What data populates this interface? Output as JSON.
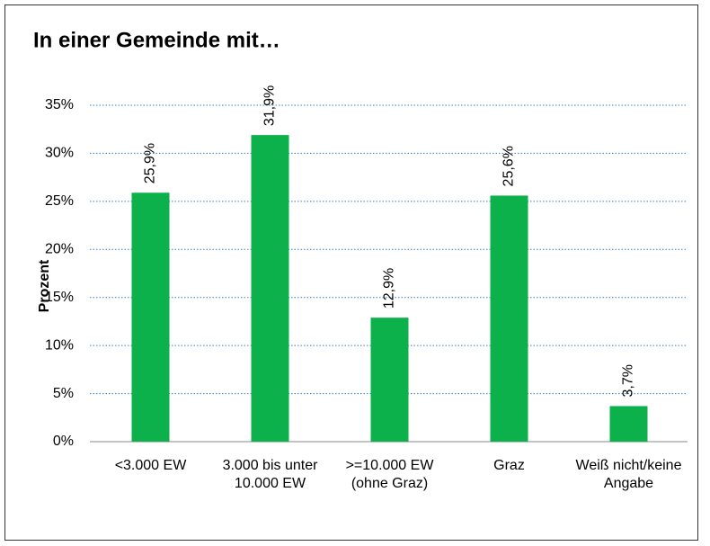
{
  "chart_data": {
    "type": "bar",
    "title": "In einer Gemeinde mit…",
    "y_label": "Prozent",
    "categories": [
      "<3.000 EW",
      "3.000 bis unter 10.000 EW",
      ">=10.000 EW (ohne Graz)",
      "Graz",
      "Weiß nicht/keine Angabe"
    ],
    "values": [
      25.9,
      31.9,
      12.9,
      25.6,
      3.7
    ],
    "value_labels": [
      "25,9%",
      "31,9%",
      "12,9%",
      "25,6%",
      "3,7%"
    ],
    "color": "#0db14b",
    "ylim": [
      0,
      35
    ],
    "yticks": [
      {
        "value": 0,
        "label": "0%"
      },
      {
        "value": 5,
        "label": "5%"
      },
      {
        "value": 10,
        "label": "10%"
      },
      {
        "value": 15,
        "label": "15%"
      },
      {
        "value": 20,
        "label": "20%"
      },
      {
        "value": 25,
        "label": "25%"
      },
      {
        "value": 30,
        "label": "30%"
      },
      {
        "value": 35,
        "label": "35%"
      }
    ],
    "grid": true
  }
}
